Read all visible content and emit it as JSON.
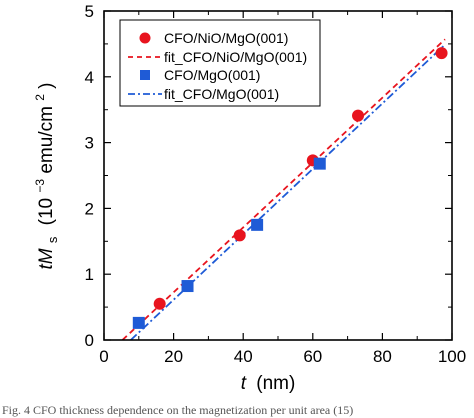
{
  "chart_data": {
    "type": "scatter",
    "xlabel_var": "t",
    "xlabel_unit": "(nm)",
    "ylabel_var": "tM",
    "ylabel_sub": "s",
    "ylabel_unit_open": "(10",
    "ylabel_unit_exp": "−3",
    "ylabel_unit_mid": "emu/cm",
    "ylabel_unit_exp2": "2",
    "ylabel_unit_close": ")",
    "xlim": [
      0,
      100
    ],
    "ylim": [
      0,
      5
    ],
    "xticks": [
      0,
      20,
      40,
      60,
      80,
      100
    ],
    "yticks": [
      0,
      1,
      2,
      3,
      4,
      5
    ],
    "grid": false,
    "legend_position": "top-left",
    "series": [
      {
        "name": "CFO/NiO/MgO(001)",
        "marker": "circle",
        "color": "#e8141e",
        "x": [
          16,
          39,
          60,
          73,
          97
        ],
        "y": [
          0.55,
          1.59,
          2.73,
          3.41,
          4.36
        ]
      },
      {
        "name": "fit_CFO/NiO/MgO(001)",
        "line": "dashed",
        "color": "#e8141e",
        "x": [
          5.3,
          98
        ],
        "y": [
          0.0,
          4.57
        ]
      },
      {
        "name": "CFO/MgO(001)",
        "marker": "square",
        "color": "#1f5bd6",
        "x": [
          10,
          24,
          44,
          62
        ],
        "y": [
          0.26,
          0.82,
          1.75,
          2.68
        ]
      },
      {
        "name": "fit_CFO/MgO(001)",
        "line": "dashdot",
        "color": "#1f5bd6",
        "x": [
          7.7,
          98
        ],
        "y": [
          0.0,
          4.49
        ]
      }
    ]
  },
  "caption": "Fig. 4    CFO thickness dependence on the magnetization per unit area (15)"
}
